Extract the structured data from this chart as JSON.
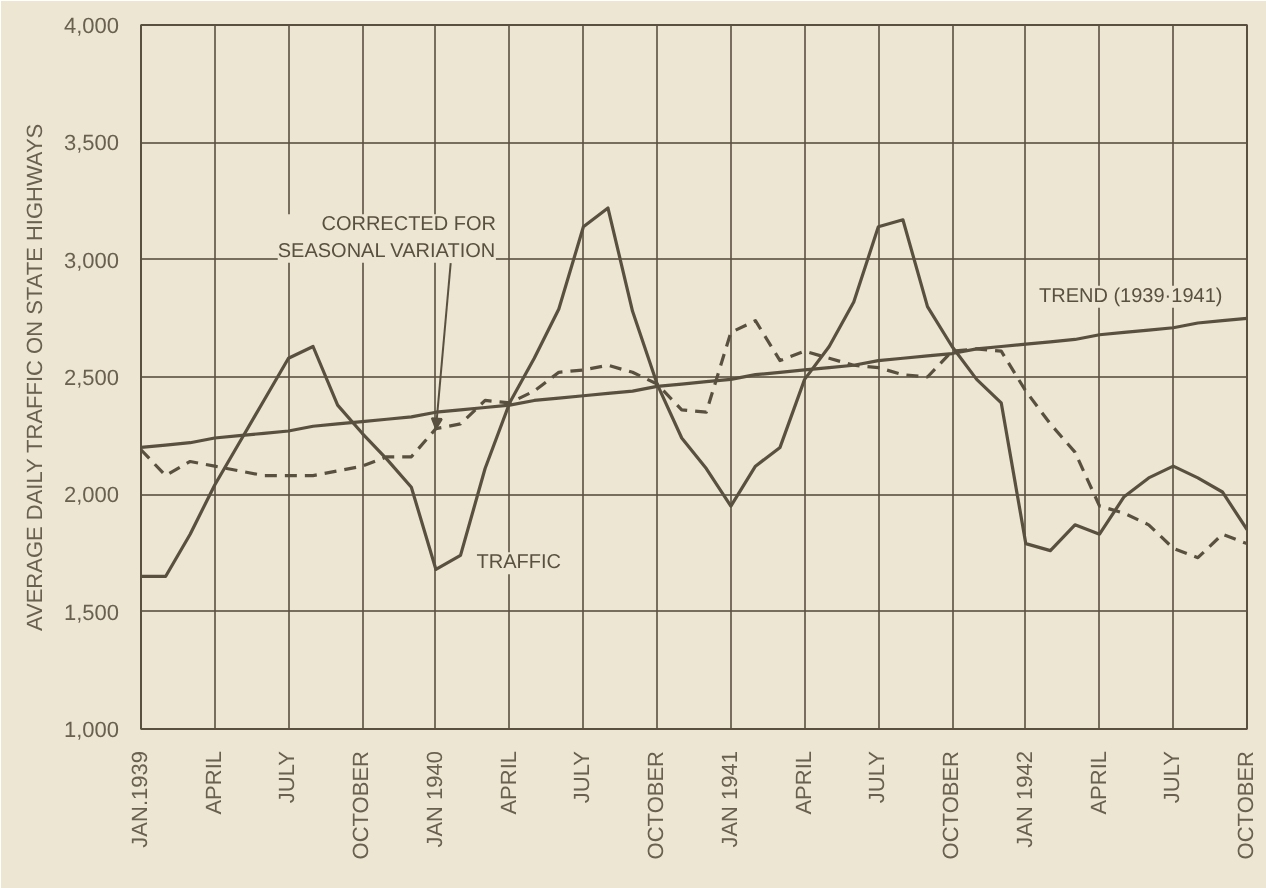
{
  "chart_data": {
    "type": "line",
    "ylabel": "AVERAGE DAILY TRAFFIC ON STATE HIGHWAYS",
    "categories": [
      "JAN.1939",
      null,
      null,
      "APRIL",
      null,
      null,
      "JULY",
      null,
      null,
      "OCTOBER",
      null,
      null,
      "JAN 1940",
      null,
      null,
      "APRIL",
      null,
      null,
      "JULY",
      null,
      null,
      "OCTOBER",
      null,
      null,
      "JAN 1941",
      null,
      null,
      "APRIL",
      null,
      null,
      "JULY",
      null,
      null,
      "OCTOBER",
      null,
      null,
      "JAN 1942",
      null,
      null,
      "APRIL",
      null,
      null,
      "JULY",
      null,
      null,
      "OCTOBER"
    ],
    "ylim": [
      1000,
      4000
    ],
    "yticks": [
      {
        "value": 1000,
        "label": "1,000"
      },
      {
        "value": 1500,
        "label": "1,500"
      },
      {
        "value": 2000,
        "label": "2,000"
      },
      {
        "value": 2500,
        "label": "2,500"
      },
      {
        "value": 3000,
        "label": "3,000"
      },
      {
        "value": 3500,
        "label": "3,500"
      },
      {
        "value": 4000,
        "label": "4,000"
      }
    ],
    "grid": true,
    "legend": false,
    "series": [
      {
        "name": "TRAFFIC",
        "color": "#5a5040",
        "line_style": "solid",
        "values": [
          1650,
          1650,
          1830,
          2040,
          2220,
          2400,
          2580,
          2630,
          2380,
          2260,
          2150,
          2030,
          1680,
          1740,
          2110,
          2390,
          2580,
          2790,
          3140,
          3220,
          2780,
          2470,
          2240,
          2110,
          1950,
          2120,
          2200,
          2490,
          2630,
          2820,
          3140,
          3170,
          2800,
          2630,
          2490,
          2390,
          1790,
          1760,
          1870,
          1830,
          1990,
          2070,
          2120,
          2070,
          2010,
          1850
        ]
      },
      {
        "name": "CORRECTED FOR\nSEASONAL VARIATION",
        "color": "#5a5040",
        "line_style": "dashed",
        "values": [
          2190,
          2080,
          2140,
          2120,
          2100,
          2080,
          2080,
          2080,
          2100,
          2120,
          2160,
          2160,
          2280,
          2300,
          2400,
          2390,
          2440,
          2520,
          2530,
          2550,
          2520,
          2470,
          2360,
          2350,
          2690,
          2740,
          2570,
          2610,
          2580,
          2550,
          2540,
          2510,
          2500,
          2610,
          2620,
          2610,
          2440,
          2300,
          2180,
          1950,
          1920,
          1870,
          1770,
          1730,
          1830,
          1790
        ]
      },
      {
        "name": "TREND (1939·1941)",
        "color": "#5a5040",
        "line_style": "solid",
        "values": [
          2200,
          2210,
          2220,
          2240,
          2250,
          2260,
          2270,
          2290,
          2300,
          2310,
          2320,
          2330,
          2350,
          2360,
          2370,
          2380,
          2400,
          2410,
          2420,
          2430,
          2440,
          2460,
          2470,
          2480,
          2490,
          2510,
          2520,
          2530,
          2540,
          2550,
          2570,
          2580,
          2590,
          2600,
          2620,
          2630,
          2640,
          2650,
          2660,
          2680,
          2690,
          2700,
          2710,
          2730,
          2740,
          2750
        ]
      }
    ]
  }
}
